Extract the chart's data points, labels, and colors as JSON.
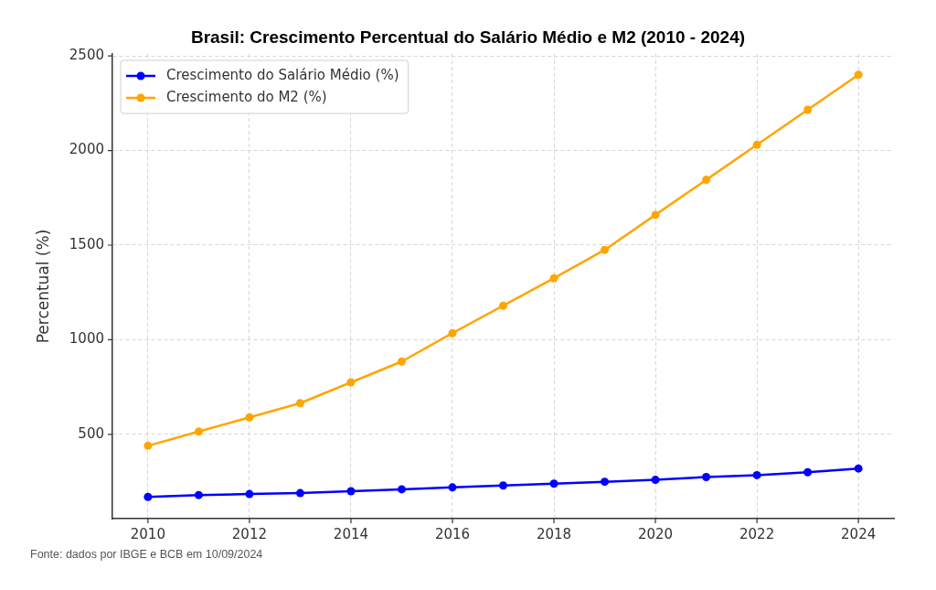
{
  "chart_data": {
    "type": "line",
    "title": "Brasil: Crescimento Percentual do Salário Médio e M2 (2010 - 2024)",
    "ylabel": "Percentual (%)",
    "annotations": [
      "Fonte: dados por IBGE e BCB em 10/09/2024"
    ],
    "x": [
      2010,
      2011,
      2012,
      2013,
      2014,
      2015,
      2016,
      2017,
      2018,
      2019,
      2020,
      2021,
      2022,
      2023,
      2024
    ],
    "series": [
      {
        "name": "Crescimento do Salário Médio (%)",
        "color": "#0000ff",
        "values": [
          170,
          180,
          185,
          190,
          200,
          210,
          220,
          230,
          240,
          250,
          260,
          275,
          285,
          300,
          320
        ]
      },
      {
        "name": "Crescimento do M2 (%)",
        "color": "#ffa500",
        "values": [
          440,
          515,
          590,
          665,
          775,
          885,
          1035,
          1180,
          1325,
          1475,
          1660,
          1845,
          2030,
          2215,
          2400
        ]
      }
    ],
    "xlim": [
      2009.3,
      2024.7
    ],
    "xticks": [
      2010,
      2012,
      2014,
      2016,
      2018,
      2020,
      2022,
      2024
    ],
    "ylim": [
      55,
      2510
    ],
    "yticks": [
      500,
      1000,
      1500,
      2000,
      2500
    ],
    "grid": true,
    "legend": "top left",
    "marker": "circle",
    "line_style": "solid"
  }
}
